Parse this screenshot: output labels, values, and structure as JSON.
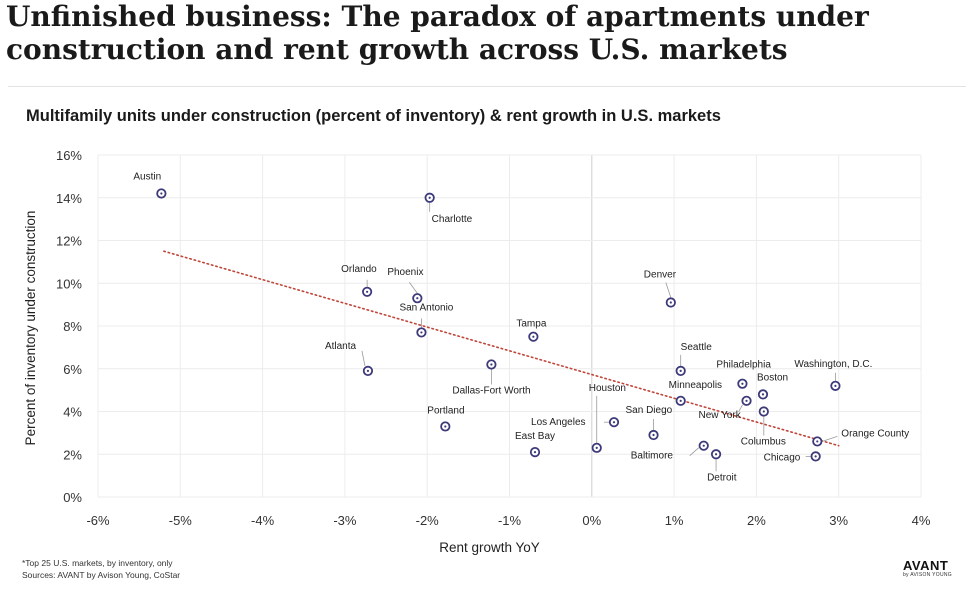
{
  "headline": {
    "line1": "Unfinished business: The paradox of apartments under",
    "line2": "construction and rent growth across U.S. markets"
  },
  "chart_data": {
    "type": "scatter",
    "title": "Multifamily units under construction (percent of inventory) & rent growth in U.S. markets",
    "xlabel": "Rent growth YoY",
    "ylabel": "Percent of inventory under construction",
    "xlim": [
      -6,
      4
    ],
    "ylim": [
      0,
      16
    ],
    "xticks": [
      "-6%",
      "-5%",
      "-4%",
      "-3%",
      "-2%",
      "-1%",
      "0%",
      "1%",
      "2%",
      "3%",
      "4%"
    ],
    "yticks": [
      "0%",
      "2%",
      "4%",
      "6%",
      "8%",
      "10%",
      "12%",
      "14%",
      "16%"
    ],
    "grid": true,
    "trendline": {
      "x": [
        -5.2,
        3.0
      ],
      "y": [
        11.5,
        2.4
      ],
      "color": "#c0463a",
      "style": "dotted"
    },
    "marker_color": "#3d3a7a",
    "points": [
      {
        "label": "Austin",
        "x": -5.23,
        "y": 14.2
      },
      {
        "label": "Charlotte",
        "x": -1.97,
        "y": 14.0
      },
      {
        "label": "Orlando",
        "x": -2.73,
        "y": 9.6
      },
      {
        "label": "Phoenix",
        "x": -2.12,
        "y": 9.3
      },
      {
        "label": "San Antonio",
        "x": -2.07,
        "y": 7.7
      },
      {
        "label": "Atlanta",
        "x": -2.72,
        "y": 5.9
      },
      {
        "label": "Tampa",
        "x": -0.71,
        "y": 7.5
      },
      {
        "label": "Dallas-Fort Worth",
        "x": -1.22,
        "y": 6.2
      },
      {
        "label": "Portland",
        "x": -1.78,
        "y": 3.3
      },
      {
        "label": "Los Angeles",
        "x": 0.27,
        "y": 3.5
      },
      {
        "label": "East Bay",
        "x": -0.69,
        "y": 2.1
      },
      {
        "label": "Houston",
        "x": 0.06,
        "y": 2.3
      },
      {
        "label": "Denver",
        "x": 0.96,
        "y": 9.1
      },
      {
        "label": "Seattle",
        "x": 1.08,
        "y": 5.9
      },
      {
        "label": "Minneapolis",
        "x": 1.08,
        "y": 4.5
      },
      {
        "label": "San Diego",
        "x": 0.75,
        "y": 2.9
      },
      {
        "label": "Baltimore",
        "x": 1.36,
        "y": 2.4
      },
      {
        "label": "Detroit",
        "x": 1.51,
        "y": 2.0
      },
      {
        "label": "New York",
        "x": 1.88,
        "y": 4.5
      },
      {
        "label": "Philadelphia",
        "x": 1.83,
        "y": 5.3
      },
      {
        "label": "Boston",
        "x": 2.08,
        "y": 4.8
      },
      {
        "label": "Columbus",
        "x": 2.09,
        "y": 4.0
      },
      {
        "label": "Washington, D.C.",
        "x": 2.96,
        "y": 5.2
      },
      {
        "label": "Orange County",
        "x": 2.74,
        "y": 2.6
      },
      {
        "label": "Chicago",
        "x": 2.72,
        "y": 1.9
      }
    ]
  },
  "footnote": {
    "line1": "*Top 25 U.S. markets, by inventory, only",
    "line2": "Sources: AVANT by Avison Young, CoStar"
  },
  "logo": {
    "main": "AVANT",
    "sub": "by AVISON YOUNG"
  }
}
